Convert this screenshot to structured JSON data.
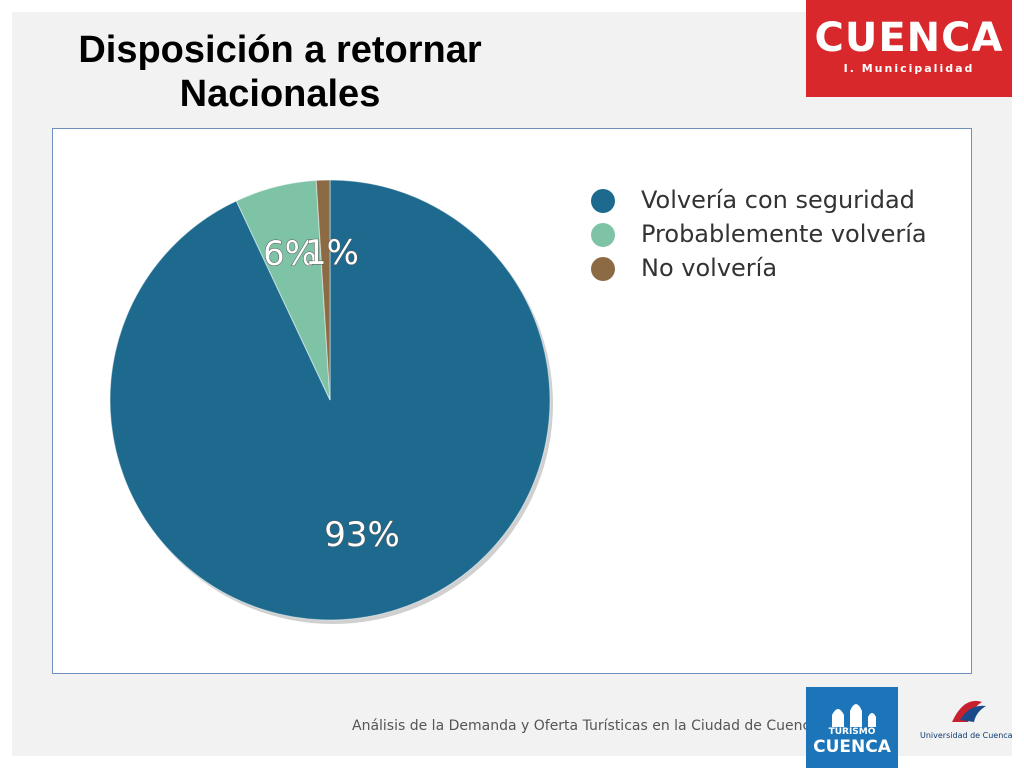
{
  "title": {
    "line1": "Disposición a retornar",
    "line2": "Nacionales"
  },
  "logos": {
    "top": {
      "brand": "CUENCA",
      "sub": "I. Municipalidad"
    },
    "bottom": {
      "line1": "TURISMO",
      "line2": "CUENCA"
    },
    "university": "Universidad de Cuenca"
  },
  "footer": "Análisis de la Demanda y Oferta Turísticas en la Ciudad de Cuenca",
  "chart_data": {
    "type": "pie",
    "categories": [
      "Volvería con seguridad",
      "Probablemente volvería",
      "No volvería"
    ],
    "values": [
      93,
      6,
      1
    ],
    "labels": [
      "93%",
      "6%",
      "1%"
    ],
    "colors": [
      "#1d6a8e",
      "#7fc3a7",
      "#8b6a44"
    ],
    "legend": "right"
  },
  "colors": {
    "brand_red": "#d9282b",
    "brand_blue": "#1d75b9"
  }
}
